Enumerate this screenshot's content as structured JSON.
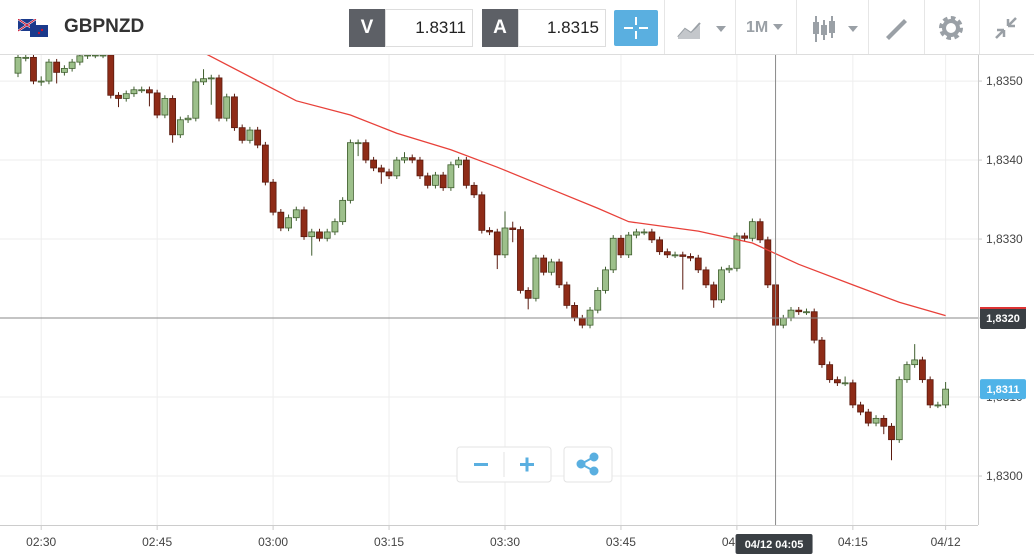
{
  "toolbar": {
    "symbol": "GBPNZD",
    "bid_label": "V",
    "bid": "1.8311",
    "ask_label": "A",
    "ask": "1.8315",
    "timeframe": "1M"
  },
  "chart_data": {
    "type": "candlestick",
    "up_color": "#9dc08b",
    "up_stroke": "#3f5e2e",
    "down_color": "#8e2b17",
    "down_stroke": "#5a1a0e",
    "grid": true,
    "open": [
      1.8351,
      1.8353,
      1.8353,
      1.835,
      1.835,
      1.83524,
      1.83511,
      1.83516,
      1.83524,
      1.83532,
      1.83533,
      1.83533,
      1.83533,
      1.83482,
      1.83478,
      1.83484,
      1.83489,
      1.83489,
      1.83485,
      1.83457,
      1.83478,
      1.83432,
      1.83451,
      1.83453,
      1.83499,
      1.83503,
      1.83504,
      1.83453,
      1.8348,
      1.83441,
      1.83425,
      1.83438,
      1.83419,
      1.83372,
      1.83334,
      1.83314,
      1.83327,
      1.83337,
      1.83303,
      1.83309,
      1.83301,
      1.83309,
      1.83322,
      1.83349,
      1.83422,
      1.83422,
      1.834,
      1.8339,
      1.83385,
      1.8338,
      1.834,
      1.83403,
      1.834,
      1.8338,
      1.83368,
      1.83381,
      1.83365,
      1.83394,
      1.834,
      1.83368,
      1.83356,
      1.83311,
      1.83309,
      1.8328,
      1.83314,
      1.83312,
      1.83235,
      1.83225,
      1.83276,
      1.83258,
      1.83271,
      1.83242,
      1.83216,
      1.832,
      1.83191,
      1.8321,
      1.83235,
      1.83261,
      1.83301,
      1.8328,
      1.83305,
      1.83309,
      1.83309,
      1.83299,
      1.83284,
      1.8328,
      1.8328,
      1.83278,
      1.83276,
      1.83261,
      1.83242,
      1.83223,
      1.83261,
      1.83263,
      1.83304,
      1.83301,
      1.83322,
      1.83299,
      1.83242,
      1.83191,
      1.832,
      1.8321,
      1.83208,
      1.83208,
      1.83172,
      1.83141,
      1.83122,
      1.83118,
      1.83118,
      1.8309,
      1.83081,
      1.83067,
      1.83073,
      1.83063,
      1.83046,
      1.83122,
      1.83141,
      1.83147,
      1.83122,
      1.8309,
      1.8309
    ],
    "high": [
      1.83535,
      1.83535,
      1.83534,
      1.83506,
      1.83528,
      1.83528,
      1.8352,
      1.83528,
      1.83536,
      1.83537,
      1.83537,
      1.83537,
      1.83537,
      1.83486,
      1.83488,
      1.83493,
      1.83493,
      1.83493,
      1.83489,
      1.83482,
      1.83482,
      1.83455,
      1.83457,
      1.83503,
      1.83515,
      1.83508,
      1.83508,
      1.83484,
      1.83484,
      1.83445,
      1.83442,
      1.83442,
      1.83423,
      1.83376,
      1.83338,
      1.83331,
      1.83341,
      1.83341,
      1.83313,
      1.83313,
      1.83313,
      1.83326,
      1.83353,
      1.83426,
      1.83426,
      1.83426,
      1.83404,
      1.83394,
      1.83389,
      1.83404,
      1.8341,
      1.83407,
      1.83404,
      1.83384,
      1.83385,
      1.83385,
      1.83398,
      1.83404,
      1.83404,
      1.83372,
      1.8336,
      1.83315,
      1.83313,
      1.83335,
      1.83322,
      1.83316,
      1.83239,
      1.8328,
      1.8328,
      1.83275,
      1.83275,
      1.83246,
      1.8322,
      1.83204,
      1.83214,
      1.83239,
      1.83265,
      1.83305,
      1.83305,
      1.83309,
      1.83313,
      1.83313,
      1.83313,
      1.83303,
      1.83288,
      1.83284,
      1.83284,
      1.83282,
      1.8328,
      1.83265,
      1.83246,
      1.83265,
      1.83267,
      1.83308,
      1.83308,
      1.83326,
      1.83326,
      1.83303,
      1.83246,
      1.83204,
      1.83214,
      1.83214,
      1.83212,
      1.83212,
      1.83176,
      1.83145,
      1.83126,
      1.83126,
      1.83122,
      1.83094,
      1.83085,
      1.83077,
      1.83077,
      1.83067,
      1.83126,
      1.83145,
      1.83167,
      1.83151,
      1.83126,
      1.83094,
      1.83119
    ],
    "low": [
      1.83505,
      1.83525,
      1.83496,
      1.83494,
      1.83496,
      1.83497,
      1.83507,
      1.83512,
      1.8352,
      1.83528,
      1.83529,
      1.83529,
      1.83478,
      1.83467,
      1.83474,
      1.8348,
      1.83485,
      1.83468,
      1.83453,
      1.83453,
      1.83422,
      1.83428,
      1.83447,
      1.83449,
      1.83495,
      1.8347,
      1.83449,
      1.83449,
      1.83437,
      1.83421,
      1.83421,
      1.83415,
      1.83368,
      1.8333,
      1.8331,
      1.8331,
      1.83323,
      1.83299,
      1.83279,
      1.83297,
      1.83297,
      1.83305,
      1.83318,
      1.83345,
      1.83405,
      1.83396,
      1.83386,
      1.8337,
      1.83376,
      1.83376,
      1.83396,
      1.83396,
      1.83376,
      1.83364,
      1.83364,
      1.83361,
      1.83361,
      1.8339,
      1.83364,
      1.83352,
      1.83307,
      1.83305,
      1.83262,
      1.83276,
      1.83296,
      1.83231,
      1.83211,
      1.83221,
      1.83254,
      1.83254,
      1.83238,
      1.83212,
      1.83196,
      1.83187,
      1.83187,
      1.83206,
      1.83231,
      1.83257,
      1.83276,
      1.83276,
      1.83301,
      1.83305,
      1.83295,
      1.8328,
      1.83276,
      1.83276,
      1.83236,
      1.83272,
      1.83257,
      1.83238,
      1.83213,
      1.83219,
      1.83257,
      1.83259,
      1.83297,
      1.83297,
      1.83295,
      1.83238,
      1.83187,
      1.83187,
      1.83196,
      1.83204,
      1.83204,
      1.83168,
      1.83137,
      1.83118,
      1.83114,
      1.83114,
      1.83086,
      1.83077,
      1.83063,
      1.83063,
      1.83053,
      1.8302,
      1.83042,
      1.83118,
      1.83137,
      1.83118,
      1.83086,
      1.83086,
      1.83086
    ],
    "close": [
      1.8353,
      1.8353,
      1.835,
      1.835,
      1.83524,
      1.83511,
      1.83516,
      1.83524,
      1.83532,
      1.83533,
      1.83533,
      1.83533,
      1.83482,
      1.83478,
      1.83484,
      1.83489,
      1.83489,
      1.83485,
      1.83457,
      1.83478,
      1.83432,
      1.83451,
      1.83453,
      1.83499,
      1.83503,
      1.83504,
      1.83453,
      1.8348,
      1.83441,
      1.83425,
      1.83438,
      1.83419,
      1.83372,
      1.83334,
      1.83314,
      1.83327,
      1.83337,
      1.83303,
      1.83309,
      1.83301,
      1.83309,
      1.83322,
      1.83349,
      1.83422,
      1.83422,
      1.834,
      1.8339,
      1.83385,
      1.8338,
      1.834,
      1.83403,
      1.834,
      1.8338,
      1.83368,
      1.83381,
      1.83365,
      1.83394,
      1.834,
      1.83368,
      1.83356,
      1.83311,
      1.83309,
      1.8328,
      1.83314,
      1.83312,
      1.83235,
      1.83225,
      1.83276,
      1.83258,
      1.83271,
      1.83242,
      1.83216,
      1.832,
      1.83191,
      1.8321,
      1.83235,
      1.83261,
      1.83301,
      1.8328,
      1.83305,
      1.83309,
      1.83309,
      1.83299,
      1.83284,
      1.8328,
      1.8328,
      1.83278,
      1.83276,
      1.83261,
      1.83242,
      1.83223,
      1.83261,
      1.83263,
      1.83304,
      1.83301,
      1.83322,
      1.83299,
      1.83242,
      1.83191,
      1.832,
      1.8321,
      1.83208,
      1.83208,
      1.83172,
      1.83141,
      1.83122,
      1.83118,
      1.83118,
      1.8309,
      1.83081,
      1.83067,
      1.83073,
      1.83063,
      1.83046,
      1.83122,
      1.83141,
      1.83147,
      1.83122,
      1.8309,
      1.8309,
      1.8311
    ],
    "ma": {
      "color": "#e8413a",
      "x": [
        24,
        36,
        43,
        49,
        56,
        62,
        69,
        75,
        79,
        88,
        95,
        101,
        108,
        114,
        120
      ],
      "values": [
        1.83536,
        1.83475,
        1.83457,
        1.83434,
        1.83413,
        1.83391,
        1.83363,
        1.83339,
        1.83322,
        1.8331,
        1.83295,
        1.83268,
        1.83242,
        1.8322,
        1.83203
      ]
    },
    "xlim": [
      -2.33,
      124.19
    ],
    "xticks": [
      {
        "value": 3,
        "label": "02:30"
      },
      {
        "value": 18,
        "label": "02:45"
      },
      {
        "value": 33,
        "label": "03:00"
      },
      {
        "value": 48,
        "label": "03:15"
      },
      {
        "value": 63,
        "label": "03:30"
      },
      {
        "value": 78,
        "label": "03:45"
      },
      {
        "value": 93,
        "label": "04:00"
      },
      {
        "value": 108,
        "label": "04:15"
      },
      {
        "value": 120,
        "label": "04/12"
      }
    ],
    "ylim": [
      1.82938,
      1.83533
    ],
    "yticks": [
      {
        "value": 1.835,
        "label": "1,8350"
      },
      {
        "value": 1.834,
        "label": "1,8340"
      },
      {
        "value": 1.833,
        "label": "1,8330"
      },
      {
        "value": 1.832,
        "label": "1,8320"
      },
      {
        "value": 1.831,
        "label": "1,8310"
      },
      {
        "value": 1.83,
        "label": "1,8300"
      }
    ],
    "crosshair": {
      "x": 98,
      "y": 1.832,
      "x_label": "04/12 04:05",
      "y_label": "1,8320"
    },
    "last_price": {
      "value": 1.8311,
      "label": "1,8311",
      "color": "#4fb3e8"
    }
  }
}
